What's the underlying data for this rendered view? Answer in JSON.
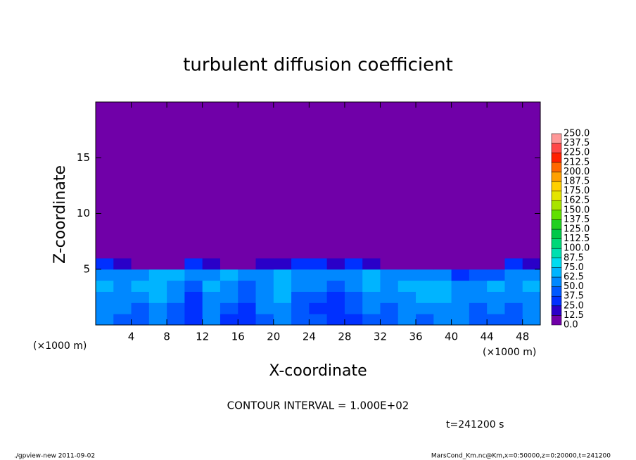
{
  "chart_data": {
    "type": "heatmap",
    "title": "turbulent diffusion coefficient",
    "xlabel": "X-coordinate",
    "ylabel": "Z-coordinate",
    "xunit": "(×1000 m)",
    "yunit": "(×1000 m)",
    "contour_note": "CONTOUR INTERVAL = 1.000E+02",
    "time_note": "t=241200 s",
    "footer_left": "./gpview-new  2011-09-02",
    "footer_right": "MarsCond_Km.nc@Km,x=0:50000,z=0:20000,t=241200",
    "xlim": [
      0,
      50
    ],
    "ylim": [
      0,
      20
    ],
    "xticks": [
      4,
      8,
      12,
      16,
      20,
      24,
      28,
      32,
      36,
      40,
      44,
      48
    ],
    "yticks": [
      5,
      10,
      15
    ],
    "xbins": [
      0,
      2,
      4,
      6,
      8,
      10,
      12,
      14,
      16,
      18,
      20,
      22,
      24,
      26,
      28,
      30,
      32,
      34,
      36,
      38,
      40,
      42,
      44,
      46,
      48,
      50
    ],
    "ybins": [
      0,
      1,
      2,
      3,
      4,
      5,
      6,
      20
    ],
    "z": [
      [
        50,
        45,
        40,
        55,
        40,
        30,
        50,
        35,
        30,
        45,
        55,
        40,
        40,
        35,
        30,
        45,
        40,
        50,
        45,
        55,
        50,
        40,
        45,
        40,
        50
      ],
      [
        55,
        50,
        45,
        60,
        45,
        30,
        55,
        45,
        35,
        50,
        60,
        40,
        35,
        30,
        40,
        55,
        45,
        55,
        60,
        60,
        55,
        45,
        55,
        45,
        55
      ],
      [
        60,
        55,
        50,
        65,
        50,
        35,
        60,
        50,
        40,
        55,
        65,
        45,
        40,
        30,
        45,
        60,
        50,
        60,
        65,
        65,
        50,
        50,
        60,
        50,
        60
      ],
      [
        65,
        60,
        65,
        70,
        60,
        45,
        65,
        60,
        45,
        60,
        70,
        55,
        50,
        45,
        55,
        65,
        60,
        65,
        70,
        70,
        55,
        60,
        70,
        60,
        65
      ],
      [
        60,
        55,
        60,
        65,
        70,
        60,
        55,
        65,
        55,
        60,
        65,
        60,
        55,
        60,
        55,
        65,
        60,
        50,
        60,
        55,
        25,
        40,
        45,
        55,
        60
      ],
      [
        25,
        20,
        10,
        5,
        5,
        30,
        15,
        10,
        5,
        15,
        20,
        30,
        25,
        20,
        30,
        15,
        5,
        5,
        5,
        5,
        5,
        5,
        5,
        25,
        20
      ],
      [
        0,
        0,
        0,
        0,
        0,
        0,
        0,
        0,
        0,
        0,
        0,
        0,
        0,
        0,
        0,
        0,
        0,
        0,
        0,
        0,
        0,
        0,
        0,
        0,
        0
      ]
    ],
    "levels": [
      {
        "value": 0,
        "label": "0.0"
      },
      12.5,
      25,
      37.5,
      50,
      62.5,
      75,
      87.5,
      100,
      112.5,
      125,
      137.5,
      150,
      162.5,
      175,
      187.5,
      200,
      212.5,
      225,
      237.5,
      250
    ],
    "level_labels": [
      "0.0",
      "12.5",
      "25.0",
      "37.5",
      "50.0",
      "62.5",
      "75.0",
      "87.5",
      "100.0",
      "112.5",
      "125.0",
      "137.5",
      "150.0",
      "162.5",
      "175.0",
      "187.5",
      "200.0",
      "212.5",
      "225.0",
      "237.5",
      "250.0"
    ],
    "colors": [
      "#7000a8",
      "#2a00c8",
      "#0030ff",
      "#0058ff",
      "#0088ff",
      "#00b4ff",
      "#00dcf0",
      "#00e0b0",
      "#00d878",
      "#00c848",
      "#20d020",
      "#60e000",
      "#a8e400",
      "#e4e400",
      "#ffd000",
      "#ffa000",
      "#ff6800",
      "#ff2000",
      "#ff4848",
      "#ff9898"
    ]
  }
}
